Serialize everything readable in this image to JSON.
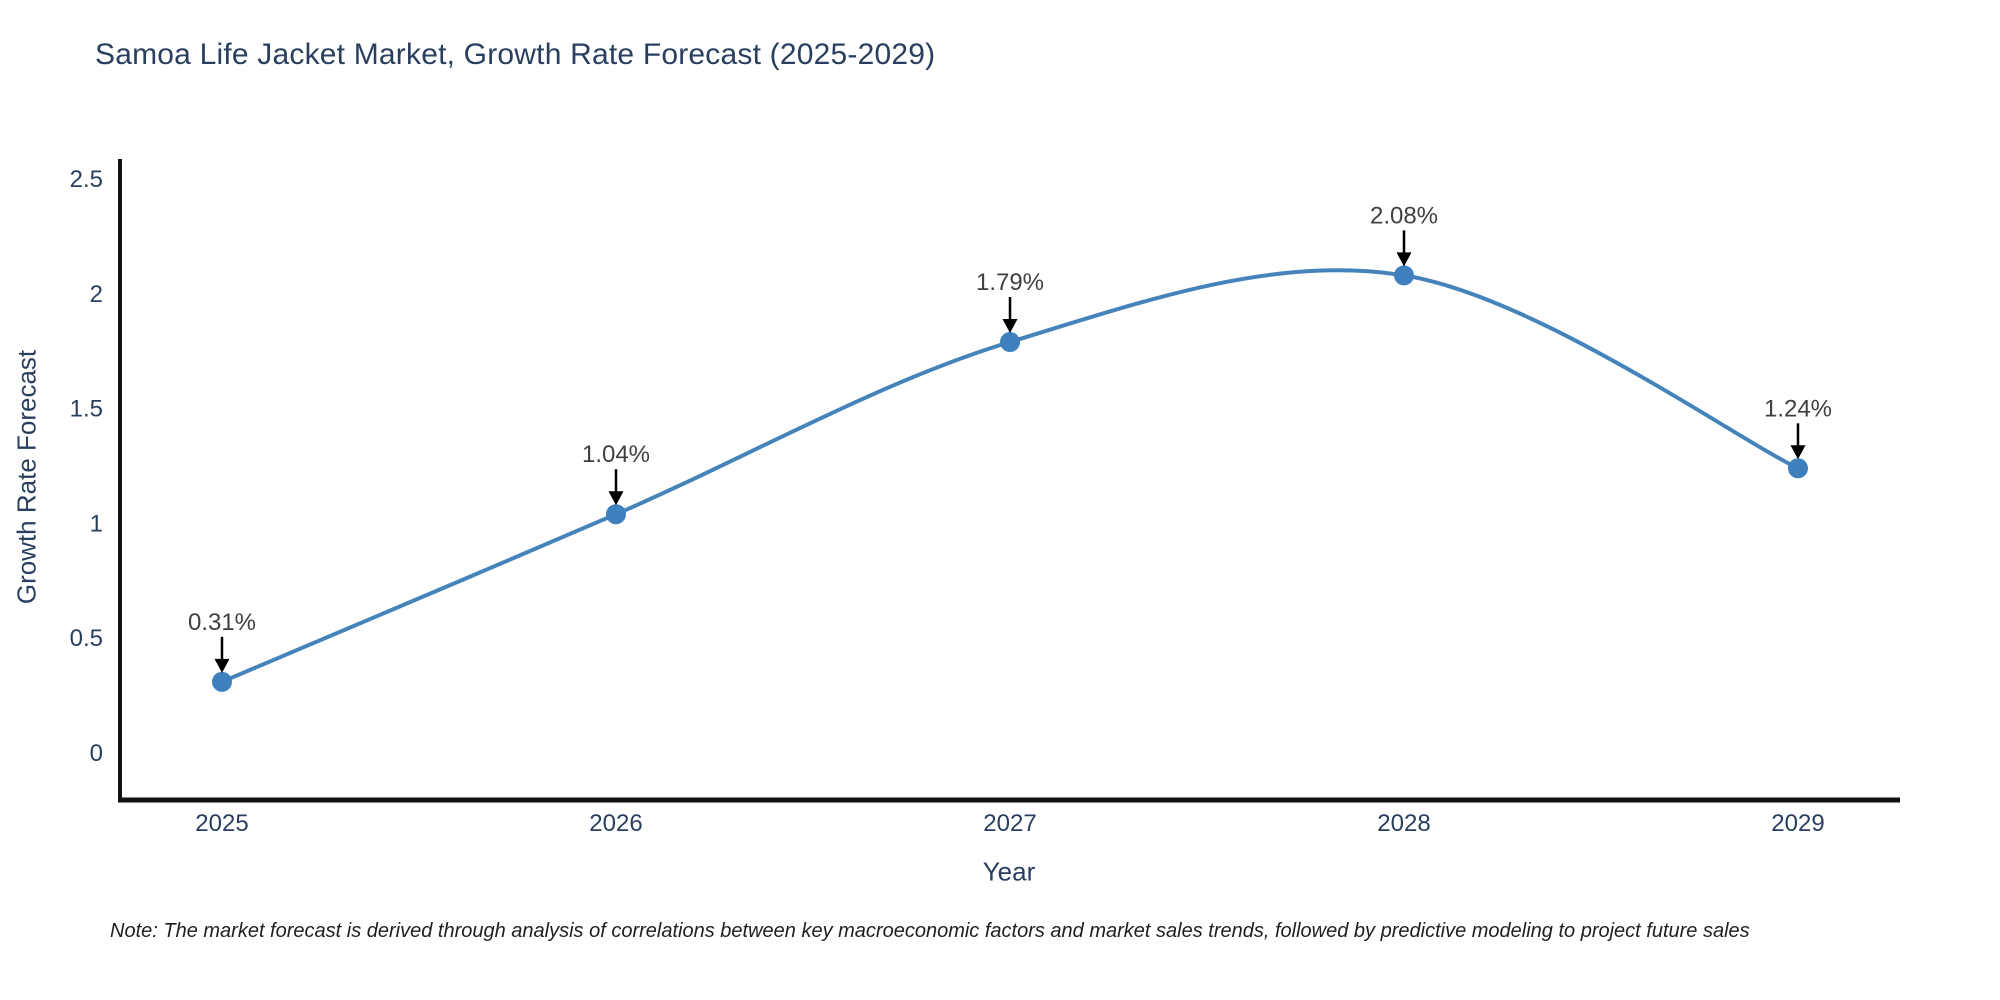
{
  "title": "Samoa Life Jacket Market, Growth Rate Forecast (2025-2029)",
  "note": "Note: The market forecast is derived through analysis of correlations between key macroeconomic factors and market sales trends, followed by predictive modeling to project future sales",
  "colors": {
    "title_text": "#2a3f5f",
    "tick_text": "#2a3f5f",
    "axis": "#111111",
    "line": "#4583bb",
    "marker": "#3e80bd",
    "annotation_arrow": "#000000",
    "annotation_text": "#404040",
    "note_text": "#1f1f1f",
    "background": "#ffffff"
  },
  "chart_data": {
    "type": "line",
    "title": "Samoa Life Jacket Market, Growth Rate Forecast (2025-2029)",
    "categories": [
      "2025",
      "2026",
      "2027",
      "2028",
      "2029"
    ],
    "x": [
      2025,
      2026,
      2027,
      2028,
      2029
    ],
    "values": [
      0.31,
      1.04,
      1.79,
      2.08,
      1.24
    ],
    "point_labels": [
      "0.31%",
      "1.04%",
      "1.79%",
      "2.08%",
      "1.24%"
    ],
    "xlabel": "Year",
    "ylabel": "Growth Rate Forecast",
    "ylim": [
      0,
      2.5
    ],
    "ytick_step": 0.5,
    "yticks": [
      "0",
      "0.5",
      "1",
      "1.5",
      "2",
      "2.5"
    ],
    "line_shape": "spline",
    "grid": false,
    "legend": "none",
    "annotations": "value labels with down arrows above each point"
  }
}
